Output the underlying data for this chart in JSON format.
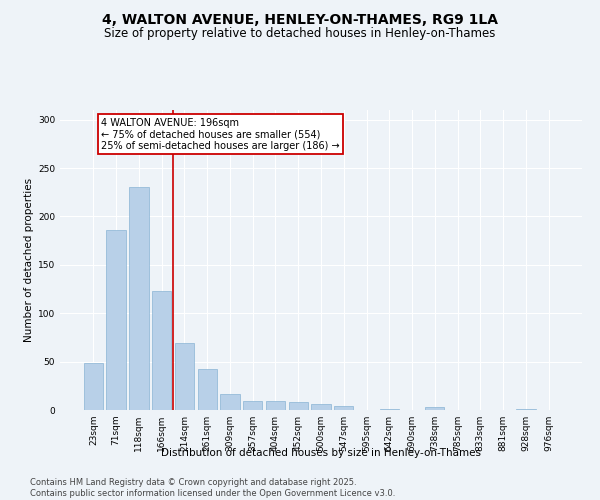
{
  "title": "4, WALTON AVENUE, HENLEY-ON-THAMES, RG9 1LA",
  "subtitle": "Size of property relative to detached houses in Henley-on-Thames",
  "xlabel": "Distribution of detached houses by size in Henley-on-Thames",
  "ylabel": "Number of detached properties",
  "categories": [
    "23sqm",
    "71sqm",
    "118sqm",
    "166sqm",
    "214sqm",
    "261sqm",
    "309sqm",
    "357sqm",
    "404sqm",
    "452sqm",
    "500sqm",
    "547sqm",
    "595sqm",
    "642sqm",
    "690sqm",
    "738sqm",
    "785sqm",
    "833sqm",
    "881sqm",
    "928sqm",
    "976sqm"
  ],
  "values": [
    49,
    186,
    230,
    123,
    69,
    42,
    17,
    9,
    9,
    8,
    6,
    4,
    0,
    1,
    0,
    3,
    0,
    0,
    0,
    1,
    0
  ],
  "bar_color": "#b8d0e8",
  "bar_edge_color": "#8ab4d4",
  "vline_color": "#cc0000",
  "annotation_text": "4 WALTON AVENUE: 196sqm\n← 75% of detached houses are smaller (554)\n25% of semi-detached houses are larger (186) →",
  "annotation_box_edgecolor": "#cc0000",
  "annotation_bg": "#ffffff",
  "ylim": [
    0,
    310
  ],
  "yticks": [
    0,
    50,
    100,
    150,
    200,
    250,
    300
  ],
  "footer_text": "Contains HM Land Registry data © Crown copyright and database right 2025.\nContains public sector information licensed under the Open Government Licence v3.0.",
  "bg_color": "#eef3f8",
  "plot_bg_color": "#eef3f8",
  "grid_color": "#ffffff",
  "title_fontsize": 10,
  "subtitle_fontsize": 8.5,
  "axis_label_fontsize": 7.5,
  "tick_fontsize": 6.5,
  "annotation_fontsize": 7,
  "footer_fontsize": 6
}
